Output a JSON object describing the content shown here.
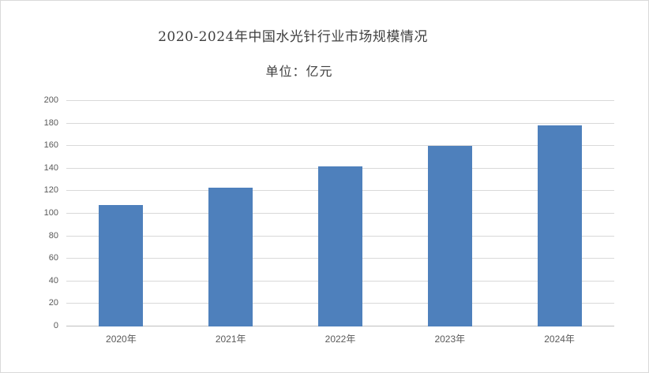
{
  "chart_data": {
    "type": "bar",
    "title": "2020-2024年中国水光针行业市场规模情况",
    "subtitle": "单位：亿元",
    "categories": [
      "2020年",
      "2021年",
      "2022年",
      "2023年",
      "2024年"
    ],
    "values": [
      108,
      123,
      142,
      160,
      178
    ],
    "xlabel": "",
    "ylabel": "",
    "ylim": [
      0,
      200
    ],
    "ytick_step": 20,
    "yticks": [
      0,
      20,
      40,
      60,
      80,
      100,
      120,
      140,
      160,
      180,
      200
    ],
    "grid": true,
    "legend_position": "none",
    "colors": {
      "bar": "#4e80bc",
      "gridline": "#d9d9d9",
      "axis_line": "#bfbfbf",
      "title_text": "#3f3f3f",
      "tick_text": "#595959",
      "background": "#ffffff",
      "border": "#d9d9d9"
    }
  }
}
